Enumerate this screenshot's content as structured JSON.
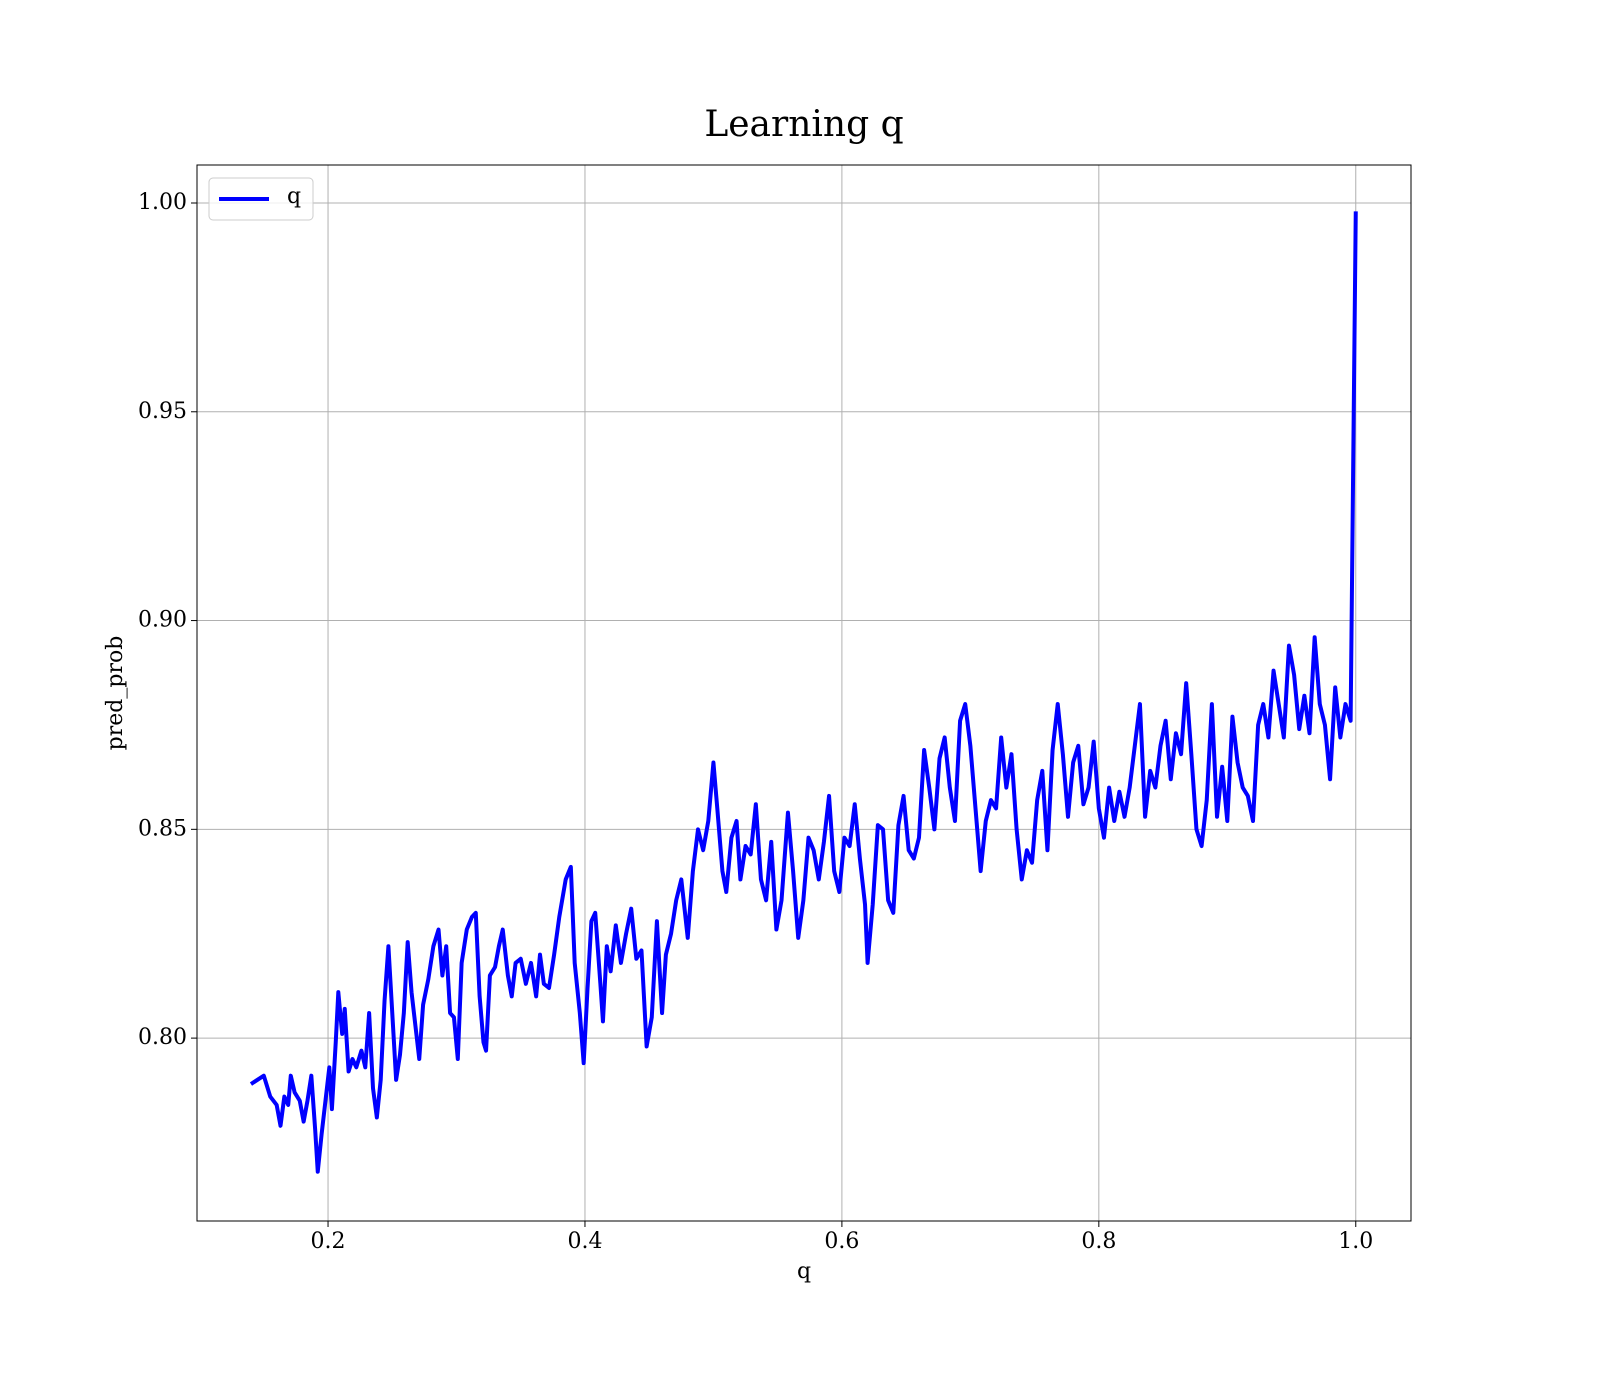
{
  "chart_data": {
    "type": "line",
    "title": "Learning q",
    "x_label": "q",
    "y_label": "pred_prob",
    "x": [
      0.14,
      0.15,
      0.155,
      0.16,
      0.163,
      0.166,
      0.169,
      0.171,
      0.174,
      0.178,
      0.181,
      0.184,
      0.187,
      0.19,
      0.192,
      0.195,
      0.198,
      0.201,
      0.203,
      0.206,
      0.208,
      0.211,
      0.213,
      0.216,
      0.219,
      0.222,
      0.226,
      0.229,
      0.232,
      0.235,
      0.238,
      0.241,
      0.244,
      0.247,
      0.25,
      0.253,
      0.256,
      0.259,
      0.262,
      0.265,
      0.268,
      0.271,
      0.274,
      0.278,
      0.282,
      0.286,
      0.289,
      0.292,
      0.295,
      0.298,
      0.301,
      0.304,
      0.308,
      0.312,
      0.315,
      0.318,
      0.321,
      0.323,
      0.326,
      0.33,
      0.333,
      0.336,
      0.34,
      0.343,
      0.346,
      0.35,
      0.354,
      0.358,
      0.362,
      0.365,
      0.368,
      0.372,
      0.376,
      0.38,
      0.385,
      0.389,
      0.392,
      0.396,
      0.399,
      0.402,
      0.405,
      0.408,
      0.412,
      0.414,
      0.417,
      0.42,
      0.424,
      0.428,
      0.432,
      0.436,
      0.44,
      0.444,
      0.448,
      0.452,
      0.456,
      0.46,
      0.463,
      0.467,
      0.471,
      0.475,
      0.48,
      0.484,
      0.488,
      0.492,
      0.496,
      0.5,
      0.503,
      0.507,
      0.51,
      0.514,
      0.518,
      0.521,
      0.525,
      0.529,
      0.533,
      0.537,
      0.541,
      0.545,
      0.549,
      0.553,
      0.558,
      0.562,
      0.566,
      0.57,
      0.574,
      0.578,
      0.582,
      0.586,
      0.59,
      0.594,
      0.598,
      0.602,
      0.606,
      0.61,
      0.614,
      0.618,
      0.62,
      0.624,
      0.628,
      0.632,
      0.636,
      0.64,
      0.644,
      0.648,
      0.652,
      0.656,
      0.66,
      0.664,
      0.668,
      0.672,
      0.676,
      0.68,
      0.684,
      0.688,
      0.692,
      0.696,
      0.7,
      0.704,
      0.708,
      0.712,
      0.716,
      0.72,
      0.724,
      0.728,
      0.732,
      0.736,
      0.74,
      0.744,
      0.748,
      0.752,
      0.756,
      0.76,
      0.764,
      0.768,
      0.772,
      0.776,
      0.78,
      0.784,
      0.788,
      0.792,
      0.796,
      0.8,
      0.804,
      0.808,
      0.812,
      0.816,
      0.82,
      0.824,
      0.828,
      0.832,
      0.836,
      0.84,
      0.844,
      0.848,
      0.852,
      0.856,
      0.86,
      0.864,
      0.868,
      0.872,
      0.876,
      0.88,
      0.884,
      0.888,
      0.892,
      0.896,
      0.9,
      0.904,
      0.908,
      0.912,
      0.916,
      0.92,
      0.924,
      0.928,
      0.932,
      0.936,
      0.94,
      0.944,
      0.948,
      0.952,
      0.956,
      0.96,
      0.964,
      0.968,
      0.972,
      0.976,
      0.98,
      0.984,
      0.988,
      0.992,
      0.996,
      1.0
    ],
    "series": [
      {
        "name": "q",
        "color": "#0000ff",
        "values": [
          0.789,
          0.791,
          0.786,
          0.784,
          0.779,
          0.786,
          0.784,
          0.791,
          0.787,
          0.785,
          0.78,
          0.785,
          0.791,
          0.778,
          0.768,
          0.777,
          0.785,
          0.793,
          0.783,
          0.799,
          0.811,
          0.801,
          0.807,
          0.792,
          0.795,
          0.793,
          0.797,
          0.793,
          0.806,
          0.788,
          0.781,
          0.79,
          0.809,
          0.822,
          0.806,
          0.79,
          0.796,
          0.806,
          0.823,
          0.811,
          0.803,
          0.795,
          0.808,
          0.814,
          0.822,
          0.826,
          0.815,
          0.822,
          0.806,
          0.805,
          0.795,
          0.818,
          0.826,
          0.829,
          0.83,
          0.81,
          0.799,
          0.797,
          0.815,
          0.817,
          0.822,
          0.826,
          0.815,
          0.81,
          0.818,
          0.819,
          0.813,
          0.818,
          0.81,
          0.82,
          0.813,
          0.812,
          0.82,
          0.829,
          0.838,
          0.841,
          0.818,
          0.806,
          0.794,
          0.812,
          0.828,
          0.83,
          0.813,
          0.804,
          0.822,
          0.816,
          0.827,
          0.818,
          0.825,
          0.831,
          0.819,
          0.821,
          0.798,
          0.805,
          0.828,
          0.806,
          0.82,
          0.825,
          0.833,
          0.838,
          0.824,
          0.84,
          0.85,
          0.845,
          0.852,
          0.866,
          0.855,
          0.84,
          0.835,
          0.848,
          0.852,
          0.838,
          0.846,
          0.844,
          0.856,
          0.838,
          0.833,
          0.847,
          0.826,
          0.833,
          0.854,
          0.84,
          0.824,
          0.833,
          0.848,
          0.845,
          0.838,
          0.847,
          0.858,
          0.84,
          0.835,
          0.848,
          0.846,
          0.856,
          0.843,
          0.832,
          0.818,
          0.832,
          0.851,
          0.85,
          0.833,
          0.83,
          0.851,
          0.858,
          0.845,
          0.843,
          0.848,
          0.869,
          0.86,
          0.85,
          0.867,
          0.872,
          0.86,
          0.852,
          0.876,
          0.88,
          0.87,
          0.855,
          0.84,
          0.852,
          0.857,
          0.855,
          0.872,
          0.86,
          0.868,
          0.85,
          0.838,
          0.845,
          0.842,
          0.857,
          0.864,
          0.845,
          0.869,
          0.88,
          0.868,
          0.853,
          0.866,
          0.87,
          0.856,
          0.86,
          0.871,
          0.855,
          0.848,
          0.86,
          0.852,
          0.859,
          0.853,
          0.86,
          0.87,
          0.88,
          0.853,
          0.864,
          0.86,
          0.87,
          0.876,
          0.862,
          0.873,
          0.868,
          0.885,
          0.868,
          0.85,
          0.846,
          0.857,
          0.88,
          0.853,
          0.865,
          0.852,
          0.877,
          0.866,
          0.86,
          0.858,
          0.852,
          0.875,
          0.88,
          0.872,
          0.888,
          0.88,
          0.872,
          0.894,
          0.887,
          0.874,
          0.882,
          0.873,
          0.896,
          0.88,
          0.875,
          0.862,
          0.884,
          0.872,
          0.88,
          0.876,
          0.998
        ]
      }
    ],
    "xlim": [
      0.098,
      1.043
    ],
    "ylim": [
      0.7562,
      1.0091
    ],
    "xticks": [
      0.2,
      0.4,
      0.6,
      0.8,
      {
        "value": 1,
        "label": "1.0"
      }
    ],
    "yticks": [
      {
        "value": 0.8,
        "label": "0.80"
      },
      {
        "value": 0.85,
        "label": "0.85"
      },
      {
        "value": 0.9,
        "label": "0.90"
      },
      {
        "value": 0.95,
        "label": "0.95"
      },
      {
        "value": 1,
        "label": "1.00"
      }
    ],
    "grid": true,
    "legend": "upper left"
  }
}
